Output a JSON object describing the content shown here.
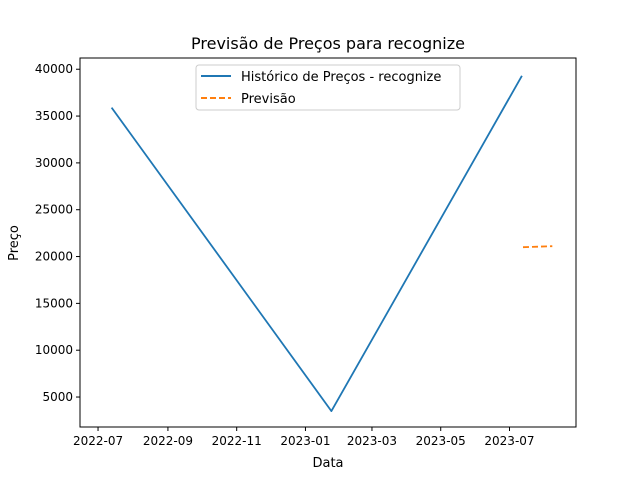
{
  "chart_data": {
    "type": "line",
    "title": "Previsão de Preços para recognize",
    "xlabel": "Data",
    "ylabel": "Preço",
    "xlim": [
      "2022-06-15",
      "2023-08-29"
    ],
    "ylim": [
      1800,
      41200
    ],
    "x_ticks": [
      {
        "date": "2022-07-01",
        "label": "2022-07"
      },
      {
        "date": "2022-09-01",
        "label": "2022-09"
      },
      {
        "date": "2022-11-01",
        "label": "2022-11"
      },
      {
        "date": "2023-01-01",
        "label": "2023-01"
      },
      {
        "date": "2023-03-01",
        "label": "2023-03"
      },
      {
        "date": "2023-05-01",
        "label": "2023-05"
      },
      {
        "date": "2023-07-01",
        "label": "2023-07"
      }
    ],
    "y_ticks": [
      5000,
      10000,
      15000,
      20000,
      25000,
      30000,
      35000,
      40000
    ],
    "grid": false,
    "legend_position": "top-center",
    "series": [
      {
        "name": "Histórico de Preços - recognize",
        "color": "#1f77b4",
        "style": "solid",
        "points": [
          {
            "x": "2022-07-13",
            "y": 35900
          },
          {
            "x": "2023-01-24",
            "y": 3500
          },
          {
            "x": "2023-07-12",
            "y": 39300
          }
        ]
      },
      {
        "name": "Previsão",
        "color": "#ff7f0e",
        "style": "dashed",
        "points": [
          {
            "x": "2023-07-13",
            "y": 21000
          },
          {
            "x": "2023-08-08",
            "y": 21100
          }
        ]
      }
    ]
  }
}
